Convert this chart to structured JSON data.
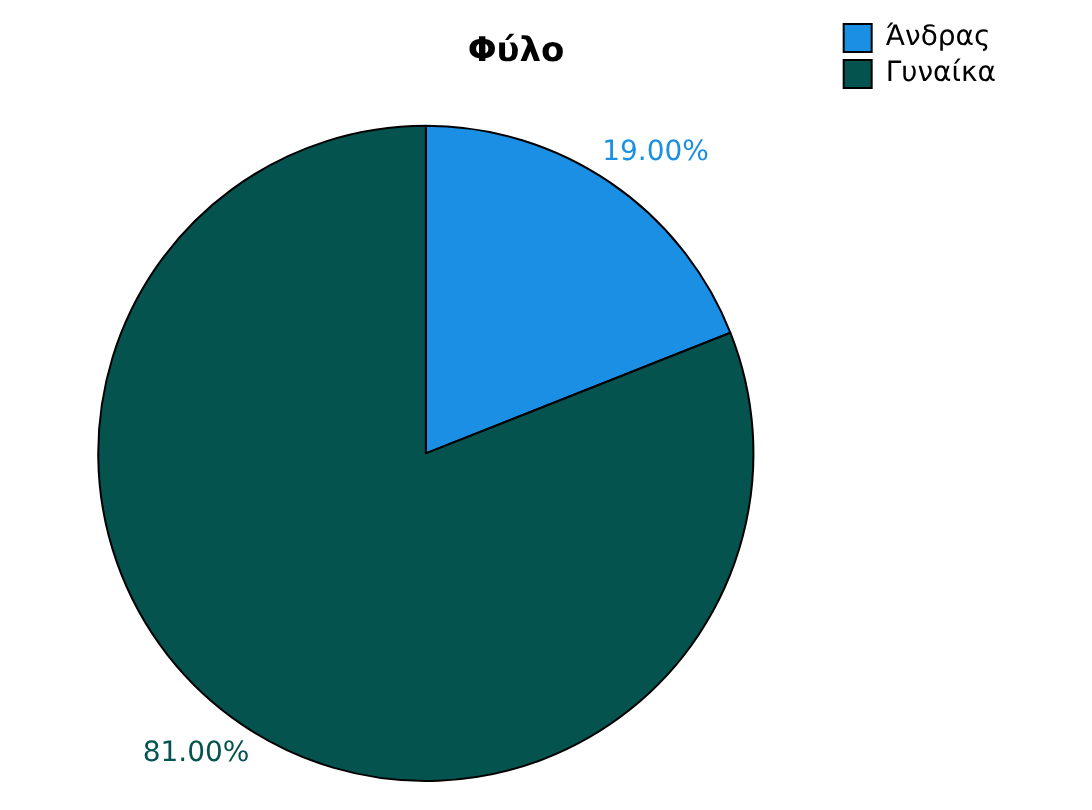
{
  "chart_data": {
    "type": "pie",
    "title": "Φύλο",
    "categories": [
      "Άνδρας",
      "Γυναίκα"
    ],
    "values": [
      19,
      81
    ],
    "colors": [
      "#1a8fe3",
      "#04534f"
    ],
    "value_labels": [
      "19.00%",
      "81.00%"
    ],
    "legend": "top right"
  }
}
